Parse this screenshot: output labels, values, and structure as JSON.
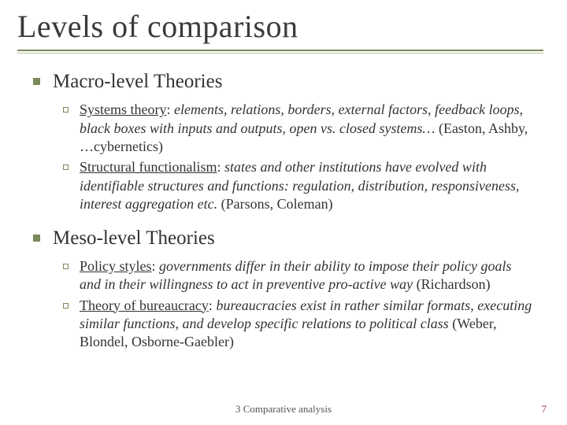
{
  "colors": {
    "accent": "#7a8a5a",
    "text": "#2a2a2a",
    "rule_top": "#7a8a5a",
    "rule_bottom": "#b9c49f",
    "pagenum": "#a04040",
    "background": "#ffffff"
  },
  "title": "Levels of comparison",
  "sections": [
    {
      "heading": "Macro-level Theories",
      "items": [
        {
          "lead": "Systems theory",
          "italic": "elements, relations, borders, external factors, feedback loops, black boxes with inputs and outputs, open vs. closed systems…",
          "tail": " (Easton, Ashby, …cybernetics)"
        },
        {
          "lead": "Structural functionalism",
          "italic": "states and other institutions have evolved with identifiable structures and functions: regulation, distribution, responsiveness, interest aggregation etc.",
          "tail": " (Parsons, Coleman)"
        }
      ]
    },
    {
      "heading": "Meso-level Theories",
      "items": [
        {
          "lead": "Policy styles",
          "italic": "governments differ in their ability to impose their policy goals and in their willingness to act in preventive pro-active way",
          "tail": " (Richardson)"
        },
        {
          "lead": "Theory of bureaucracy",
          "italic": "bureaucracies exist in rather similar formats, executing similar functions, and develop specific relations to political class",
          "tail": " (Weber, Blondel, Osborne-Gaebler)"
        }
      ]
    }
  ],
  "footer": "3 Comparative analysis",
  "page_number": "7",
  "typography": {
    "title_fontsize": 40,
    "l1_fontsize": 25,
    "l2_fontsize": 18,
    "footer_fontsize": 13,
    "font_family": "Garamond"
  }
}
